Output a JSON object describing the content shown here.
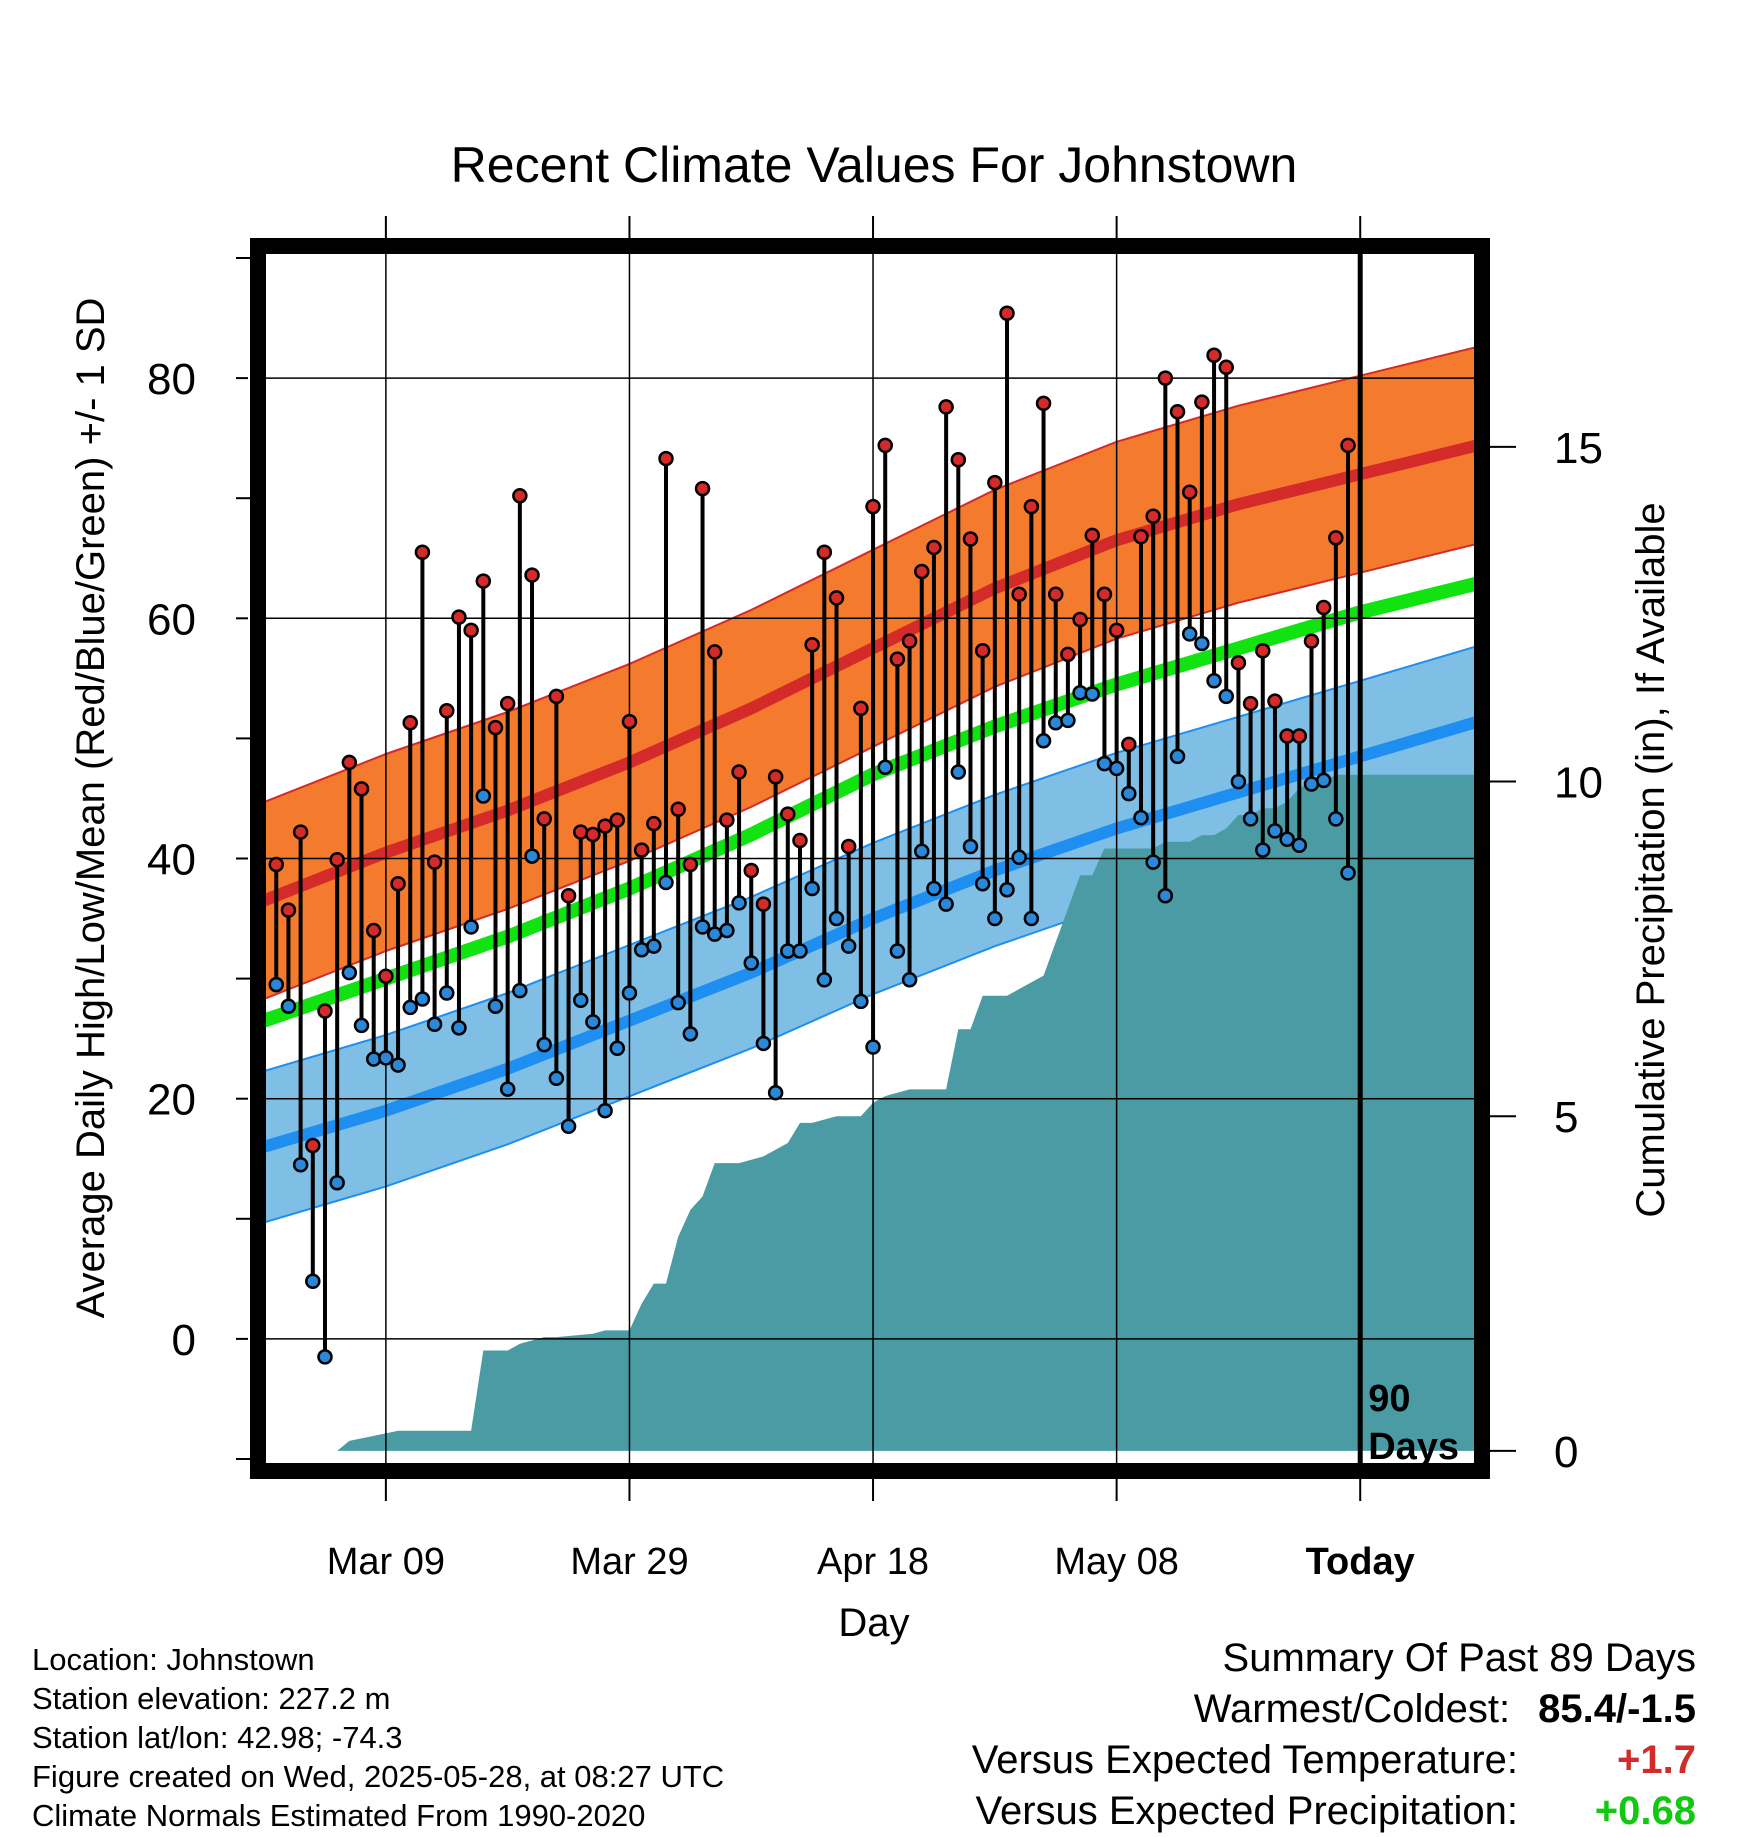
{
  "chart_data": {
    "type": "line",
    "title": "Recent Climate Values For Johnstown",
    "xlabel": "Day",
    "ylabel": "Average Daily High/Low/Mean (Red/Blue/Green) +/- 1 SD",
    "y2label": "Cumulative Precipitation (in), If Available",
    "x_tick_labels": [
      "Mar 09",
      "Mar 29",
      "Apr 18",
      "May 08",
      "Today"
    ],
    "x_tick_days": [
      9,
      29,
      49,
      69,
      89
    ],
    "y_ticks": [
      0,
      20,
      40,
      60,
      80
    ],
    "y2_ticks": [
      0,
      5,
      10,
      15
    ],
    "ylim": [
      -11,
      91
    ],
    "y2lim": [
      -0.3,
      18
    ],
    "xlim": [
      -1.5,
      99
    ],
    "today_label": "90\nDays",
    "grid": true,
    "colors": {
      "high_band": "#f47a2e",
      "high_line": "#d42a2a",
      "low_band": "#7fbfe6",
      "low_line": "#1e8ff0",
      "mean_line": "#11e311",
      "precip": "#4a9ba3",
      "high_point": "#d42a2a",
      "low_point": "#2b87d8"
    },
    "normals": {
      "days": [
        -1,
        9,
        19,
        29,
        39,
        49,
        59,
        69,
        79,
        89,
        99
      ],
      "high": [
        36.5,
        40.5,
        44.0,
        48.0,
        52.5,
        57.5,
        62.5,
        66.5,
        69.5,
        72.0,
        74.5
      ],
      "high_sd": 8.2,
      "low": [
        16.0,
        19.0,
        22.5,
        26.5,
        30.5,
        35.0,
        39.0,
        42.5,
        45.5,
        48.5,
        51.5
      ],
      "low_sd": 6.3,
      "mean": [
        26.5,
        30.0,
        33.5,
        37.5,
        42.0,
        47.0,
        51.0,
        54.5,
        57.5,
        60.5,
        63.0
      ]
    },
    "series": [
      {
        "name": "High",
        "days": [
          0,
          1,
          2,
          3,
          4,
          5,
          6,
          7,
          8,
          9,
          10,
          11,
          12,
          13,
          14,
          15,
          16,
          17,
          18,
          19,
          20,
          21,
          22,
          23,
          24,
          25,
          26,
          27,
          28,
          29,
          30,
          31,
          32,
          33,
          34,
          35,
          36,
          37,
          38,
          39,
          40,
          41,
          42,
          43,
          44,
          45,
          46,
          47,
          48,
          49,
          50,
          51,
          52,
          53,
          54,
          55,
          56,
          57,
          58,
          59,
          60,
          61,
          62,
          63,
          64,
          65,
          66,
          67,
          68,
          69,
          70,
          71,
          72,
          73,
          74,
          75,
          76,
          77,
          78,
          79,
          80,
          81,
          82,
          83,
          84,
          85,
          86,
          87,
          88
        ],
        "values": [
          39.5,
          35.7,
          42.2,
          16.1,
          27.3,
          39.9,
          48.0,
          45.8,
          34.0,
          30.2,
          37.9,
          51.3,
          65.5,
          39.7,
          52.3,
          60.1,
          59.0,
          63.1,
          50.9,
          52.9,
          70.2,
          63.6,
          43.3,
          53.5,
          36.9,
          42.2,
          42.0,
          42.7,
          43.2,
          51.4,
          40.7,
          42.9,
          73.3,
          44.1,
          39.5,
          70.8,
          57.2,
          43.2,
          47.2,
          39.0,
          36.2,
          46.8,
          43.7,
          41.5,
          57.8,
          65.5,
          61.7,
          41.0,
          52.5,
          69.3,
          74.4,
          56.6,
          58.1,
          63.9,
          65.9,
          77.6,
          73.2,
          66.6,
          57.3,
          71.3,
          85.4,
          62.0,
          69.3,
          77.9,
          62.0,
          57.0,
          59.9,
          66.9,
          62.0,
          59.0,
          49.5,
          66.8,
          68.5,
          80.0,
          77.2,
          70.5,
          78.0,
          81.9,
          80.9,
          56.3,
          52.9,
          57.3,
          53.1,
          50.2,
          50.2,
          58.1,
          60.9,
          66.7,
          74.4
        ]
      },
      {
        "name": "Low",
        "days": [
          0,
          1,
          2,
          3,
          4,
          5,
          6,
          7,
          8,
          9,
          10,
          11,
          12,
          13,
          14,
          15,
          16,
          17,
          18,
          19,
          20,
          21,
          22,
          23,
          24,
          25,
          26,
          27,
          28,
          29,
          30,
          31,
          32,
          33,
          34,
          35,
          36,
          37,
          38,
          39,
          40,
          41,
          42,
          43,
          44,
          45,
          46,
          47,
          48,
          49,
          50,
          51,
          52,
          53,
          54,
          55,
          56,
          57,
          58,
          59,
          60,
          61,
          62,
          63,
          64,
          65,
          66,
          67,
          68,
          69,
          70,
          71,
          72,
          73,
          74,
          75,
          76,
          77,
          78,
          79,
          80,
          81,
          82,
          83,
          84,
          85,
          86,
          87,
          88
        ],
        "values": [
          29.5,
          27.7,
          14.5,
          4.8,
          -1.5,
          13.0,
          30.5,
          26.1,
          23.3,
          23.4,
          22.8,
          27.6,
          28.3,
          26.2,
          28.8,
          25.9,
          34.3,
          45.2,
          27.7,
          20.8,
          29.0,
          40.2,
          24.5,
          21.7,
          17.7,
          28.2,
          26.4,
          19.0,
          24.2,
          28.8,
          32.4,
          32.7,
          38.0,
          28.0,
          25.4,
          34.3,
          33.7,
          34.0,
          36.3,
          31.3,
          24.6,
          20.5,
          32.3,
          32.3,
          37.5,
          29.9,
          35.0,
          32.7,
          28.1,
          24.3,
          47.6,
          32.3,
          29.9,
          40.6,
          37.5,
          36.2,
          47.2,
          41.0,
          37.9,
          35.0,
          37.4,
          40.1,
          35.0,
          49.8,
          51.3,
          51.5,
          53.8,
          53.7,
          47.9,
          47.5,
          45.4,
          43.4,
          39.7,
          36.9,
          48.5,
          58.7,
          57.9,
          54.8,
          53.5,
          46.4,
          43.3,
          40.7,
          42.3,
          41.6,
          41.1,
          46.2,
          46.5,
          43.3,
          38.8
        ]
      }
    ],
    "precip": {
      "days": [
        -1,
        5,
        6,
        10,
        11,
        16,
        17,
        19,
        20,
        22,
        23,
        26,
        27,
        29,
        30,
        31,
        32,
        33,
        34,
        35,
        36,
        37,
        38,
        40,
        42,
        43,
        44,
        46,
        48,
        49,
        50,
        52,
        53,
        55,
        56,
        57,
        58,
        60,
        61,
        63,
        64,
        65,
        66,
        67,
        68,
        70,
        71,
        72,
        73,
        74,
        75,
        76,
        77,
        78,
        79,
        80,
        81,
        82,
        83,
        84,
        85,
        86,
        87,
        88,
        99
      ],
      "values": [
        0,
        0,
        0.15,
        0.3,
        0.3,
        0.3,
        1.5,
        1.5,
        1.6,
        1.7,
        1.7,
        1.75,
        1.8,
        1.8,
        2.2,
        2.5,
        2.5,
        3.2,
        3.6,
        3.8,
        4.3,
        4.3,
        4.3,
        4.4,
        4.6,
        4.9,
        4.9,
        5.0,
        5.0,
        5.2,
        5.3,
        5.4,
        5.4,
        5.4,
        6.3,
        6.3,
        6.8,
        6.8,
        6.9,
        7.1,
        7.6,
        8.1,
        8.6,
        8.6,
        9.0,
        9.0,
        9.0,
        9.0,
        9.1,
        9.1,
        9.1,
        9.2,
        9.2,
        9.3,
        9.5,
        9.5,
        9.6,
        9.6,
        9.7,
        9.9,
        10.0,
        10.0,
        10.1,
        10.1,
        10.1
      ]
    }
  },
  "footer": {
    "location": "Location: Johnstown",
    "elevation": "Station elevation: 227.2 m",
    "latlon": "Station lat/lon: 42.98; -74.3",
    "created": "Figure created on Wed, 2025-05-28, at 08:27 UTC",
    "normals": "Climate Normals Estimated From 1990-2020"
  },
  "summary": {
    "heading": "Summary Of Past 89 Days",
    "warmest_label": "Warmest/Coldest:",
    "warmest_value": "85.4/-1.5",
    "temp_label": "Versus Expected Temperature:",
    "temp_value": "+1.7",
    "temp_color": "#d42a2a",
    "precip_label": "Versus Expected Precipitation:",
    "precip_value": "+0.68",
    "precip_color": "#11c911"
  }
}
